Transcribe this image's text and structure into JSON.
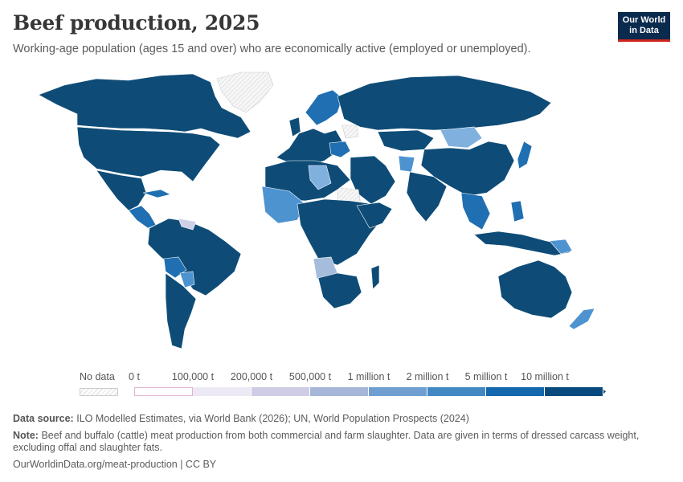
{
  "title": "Beef production, 2025",
  "subtitle": "Working-age population (ages 15 and over) who are economically active (employed or unemployed).",
  "logo": {
    "line1": "Our World",
    "line2": "in Data"
  },
  "legend": {
    "no_data_label": "No data",
    "bins": [
      {
        "label": "0 t",
        "color": "#ffffff",
        "border": "#e1b3cc"
      },
      {
        "label": "100,000 t",
        "color": "#ece9f4"
      },
      {
        "label": "200,000 t",
        "color": "#cfcde6"
      },
      {
        "label": "500,000 t",
        "color": "#a5b6d9"
      },
      {
        "label": "1 million t",
        "color": "#6f9fd0"
      },
      {
        "label": "2 million t",
        "color": "#4289c4"
      },
      {
        "label": "5 million t",
        "color": "#1468ae"
      },
      {
        "label": "10 million t",
        "color": "#084a7d"
      }
    ]
  },
  "colors": {
    "highest": "#0e4c77",
    "mid": "#1f6fb2",
    "light": "#4d93d0",
    "lighter": "#7fb0de",
    "pale": "#a5bcdc",
    "lavender": "#cfd0e8",
    "no_data": "#f2f2f2"
  },
  "footer": {
    "source_label": "Data source:",
    "source_text": "ILO Modelled Estimates, via World Bank (2026); UN, World Population Prospects (2024)",
    "note_label": "Note:",
    "note_line1": "Beef and buffalo (cattle) meat production from both commercial and farm slaughter. Data are given in terms of dressed carcass weight,",
    "note_line2": "excluding offal and slaughter fats.",
    "url": "OurWorldinData.org/meat-production | CC BY"
  }
}
